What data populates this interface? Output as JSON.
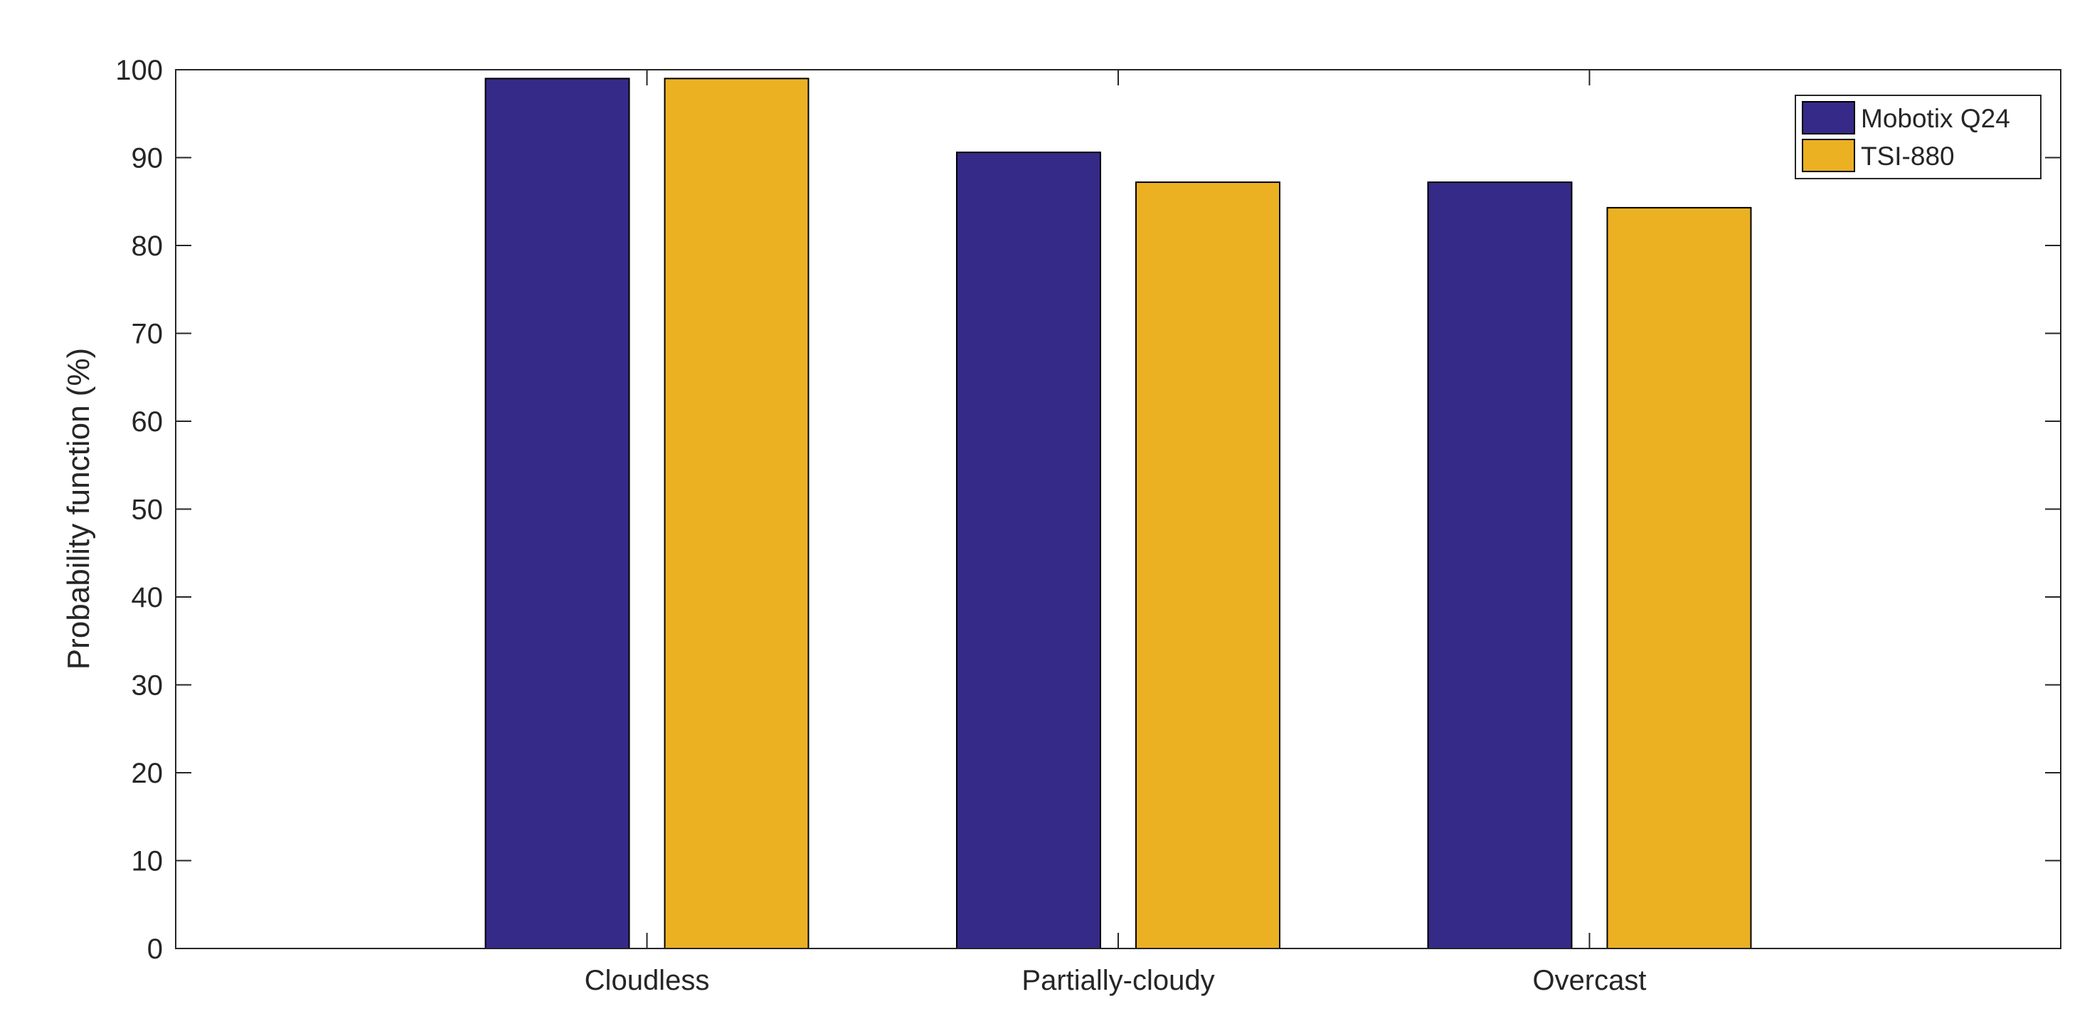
{
  "chart_data": {
    "type": "bar",
    "categories": [
      "Cloudless",
      "Partially-cloudy",
      "Overcast"
    ],
    "series": [
      {
        "name": "Mobotix Q24",
        "values": [
          99.0,
          90.6,
          87.2
        ],
        "color": "#352A87"
      },
      {
        "name": "TSI-880",
        "values": [
          99.0,
          87.2,
          84.3
        ],
        "color": "#EBB123"
      }
    ],
    "title": "",
    "xlabel": "",
    "ylabel": "Probability function (%)",
    "ylim": [
      0,
      100
    ],
    "yticks": [
      0,
      10,
      20,
      30,
      40,
      50,
      60,
      70,
      80,
      90,
      100
    ],
    "grid": false,
    "legend_position": "top-right",
    "box": true
  }
}
